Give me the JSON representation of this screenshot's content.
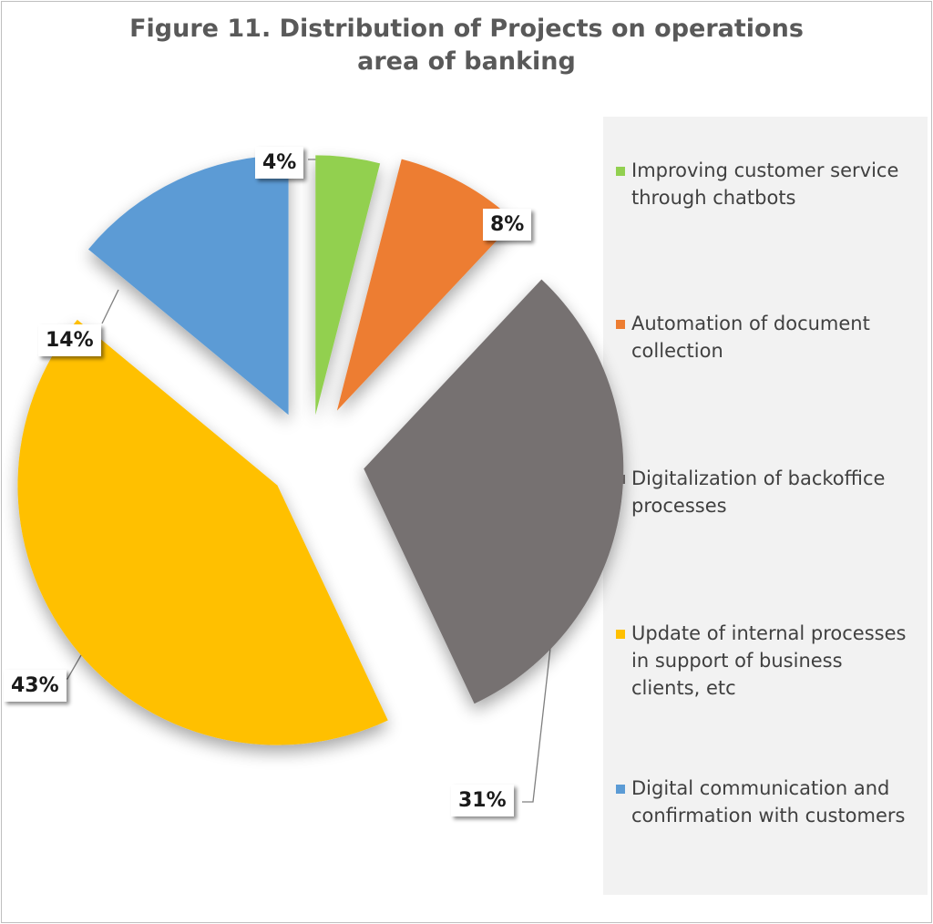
{
  "chart_data": {
    "type": "pie",
    "title_lines": [
      "Figure 11. Distribution of Projects on operations",
      "area of banking"
    ],
    "legend_position": "right",
    "slices": [
      {
        "label": "Improving customer service through chatbots",
        "legend_lines": "Improving customer service\nthrough chatbots",
        "value": 4,
        "display": "4%",
        "color": "#92d050"
      },
      {
        "label": "Automation of document collection",
        "legend_lines": "Automation of document\ncollection",
        "value": 8,
        "display": "8%",
        "color": "#ed7d31"
      },
      {
        "label": "Digitalization of backoffice processes",
        "legend_lines": "Digitalization of backoffice\nprocesses",
        "value": 31,
        "display": "31%",
        "color": "#767171"
      },
      {
        "label": "Update of internal processes in support of business clients, etc",
        "legend_lines": "Update of internal processes\nin support of business\nclients, etc",
        "value": 43,
        "display": "43%",
        "color": "#ffc000"
      },
      {
        "label": "Digital communication and confirmation with customers",
        "legend_lines": "Digital communication and\nconfirmation with customers",
        "value": 14,
        "display": "14%",
        "color": "#5b9bd5"
      }
    ]
  }
}
